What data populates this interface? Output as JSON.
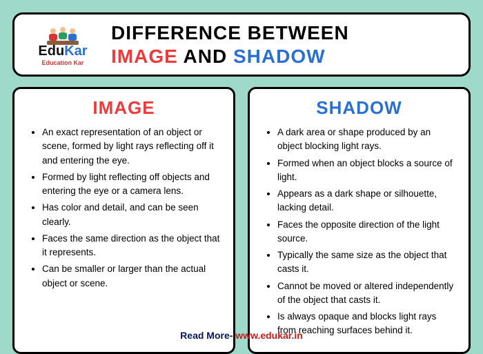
{
  "logo": {
    "name_part1": "Edu",
    "name_part2": "Kar",
    "subtitle": "Education Kar"
  },
  "title": {
    "line1": "DIFFERENCE BETWEEN",
    "image": "IMAGE",
    "and": "AND",
    "shadow": "SHADOW"
  },
  "cards": {
    "image": {
      "title": "IMAGE",
      "items": [
        "An exact representation of an object or scene, formed by light rays reflecting off it and entering the eye.",
        "Formed by light reflecting off objects and entering the eye or a camera lens.",
        "Has color and detail, and can be seen clearly.",
        "Faces the same direction as the object that it represents.",
        "Can be smaller or larger than the actual object or scene."
      ]
    },
    "shadow": {
      "title": "SHADOW",
      "items": [
        "A dark area or shape produced by an object blocking light rays.",
        "Formed when an object blocks a source of light.",
        "Appears as a dark shape or silhouette, lacking detail.",
        "Faces the opposite direction of the light source.",
        "Typically the same size as the object that casts it.",
        "Cannot be moved or altered independently of the object that casts it.",
        "Is always opaque and blocks light rays from reaching surfaces behind it."
      ]
    }
  },
  "footer": {
    "label": "Read More- ",
    "link": "www.edukar.in"
  },
  "colors": {
    "background": "#9ed9ca",
    "card_bg": "#ffffff",
    "border": "#000000",
    "image_color": "#ee3a3a",
    "shadow_color": "#2a6fd6",
    "footer_label": "#07175e",
    "footer_link": "#c41a1a"
  }
}
